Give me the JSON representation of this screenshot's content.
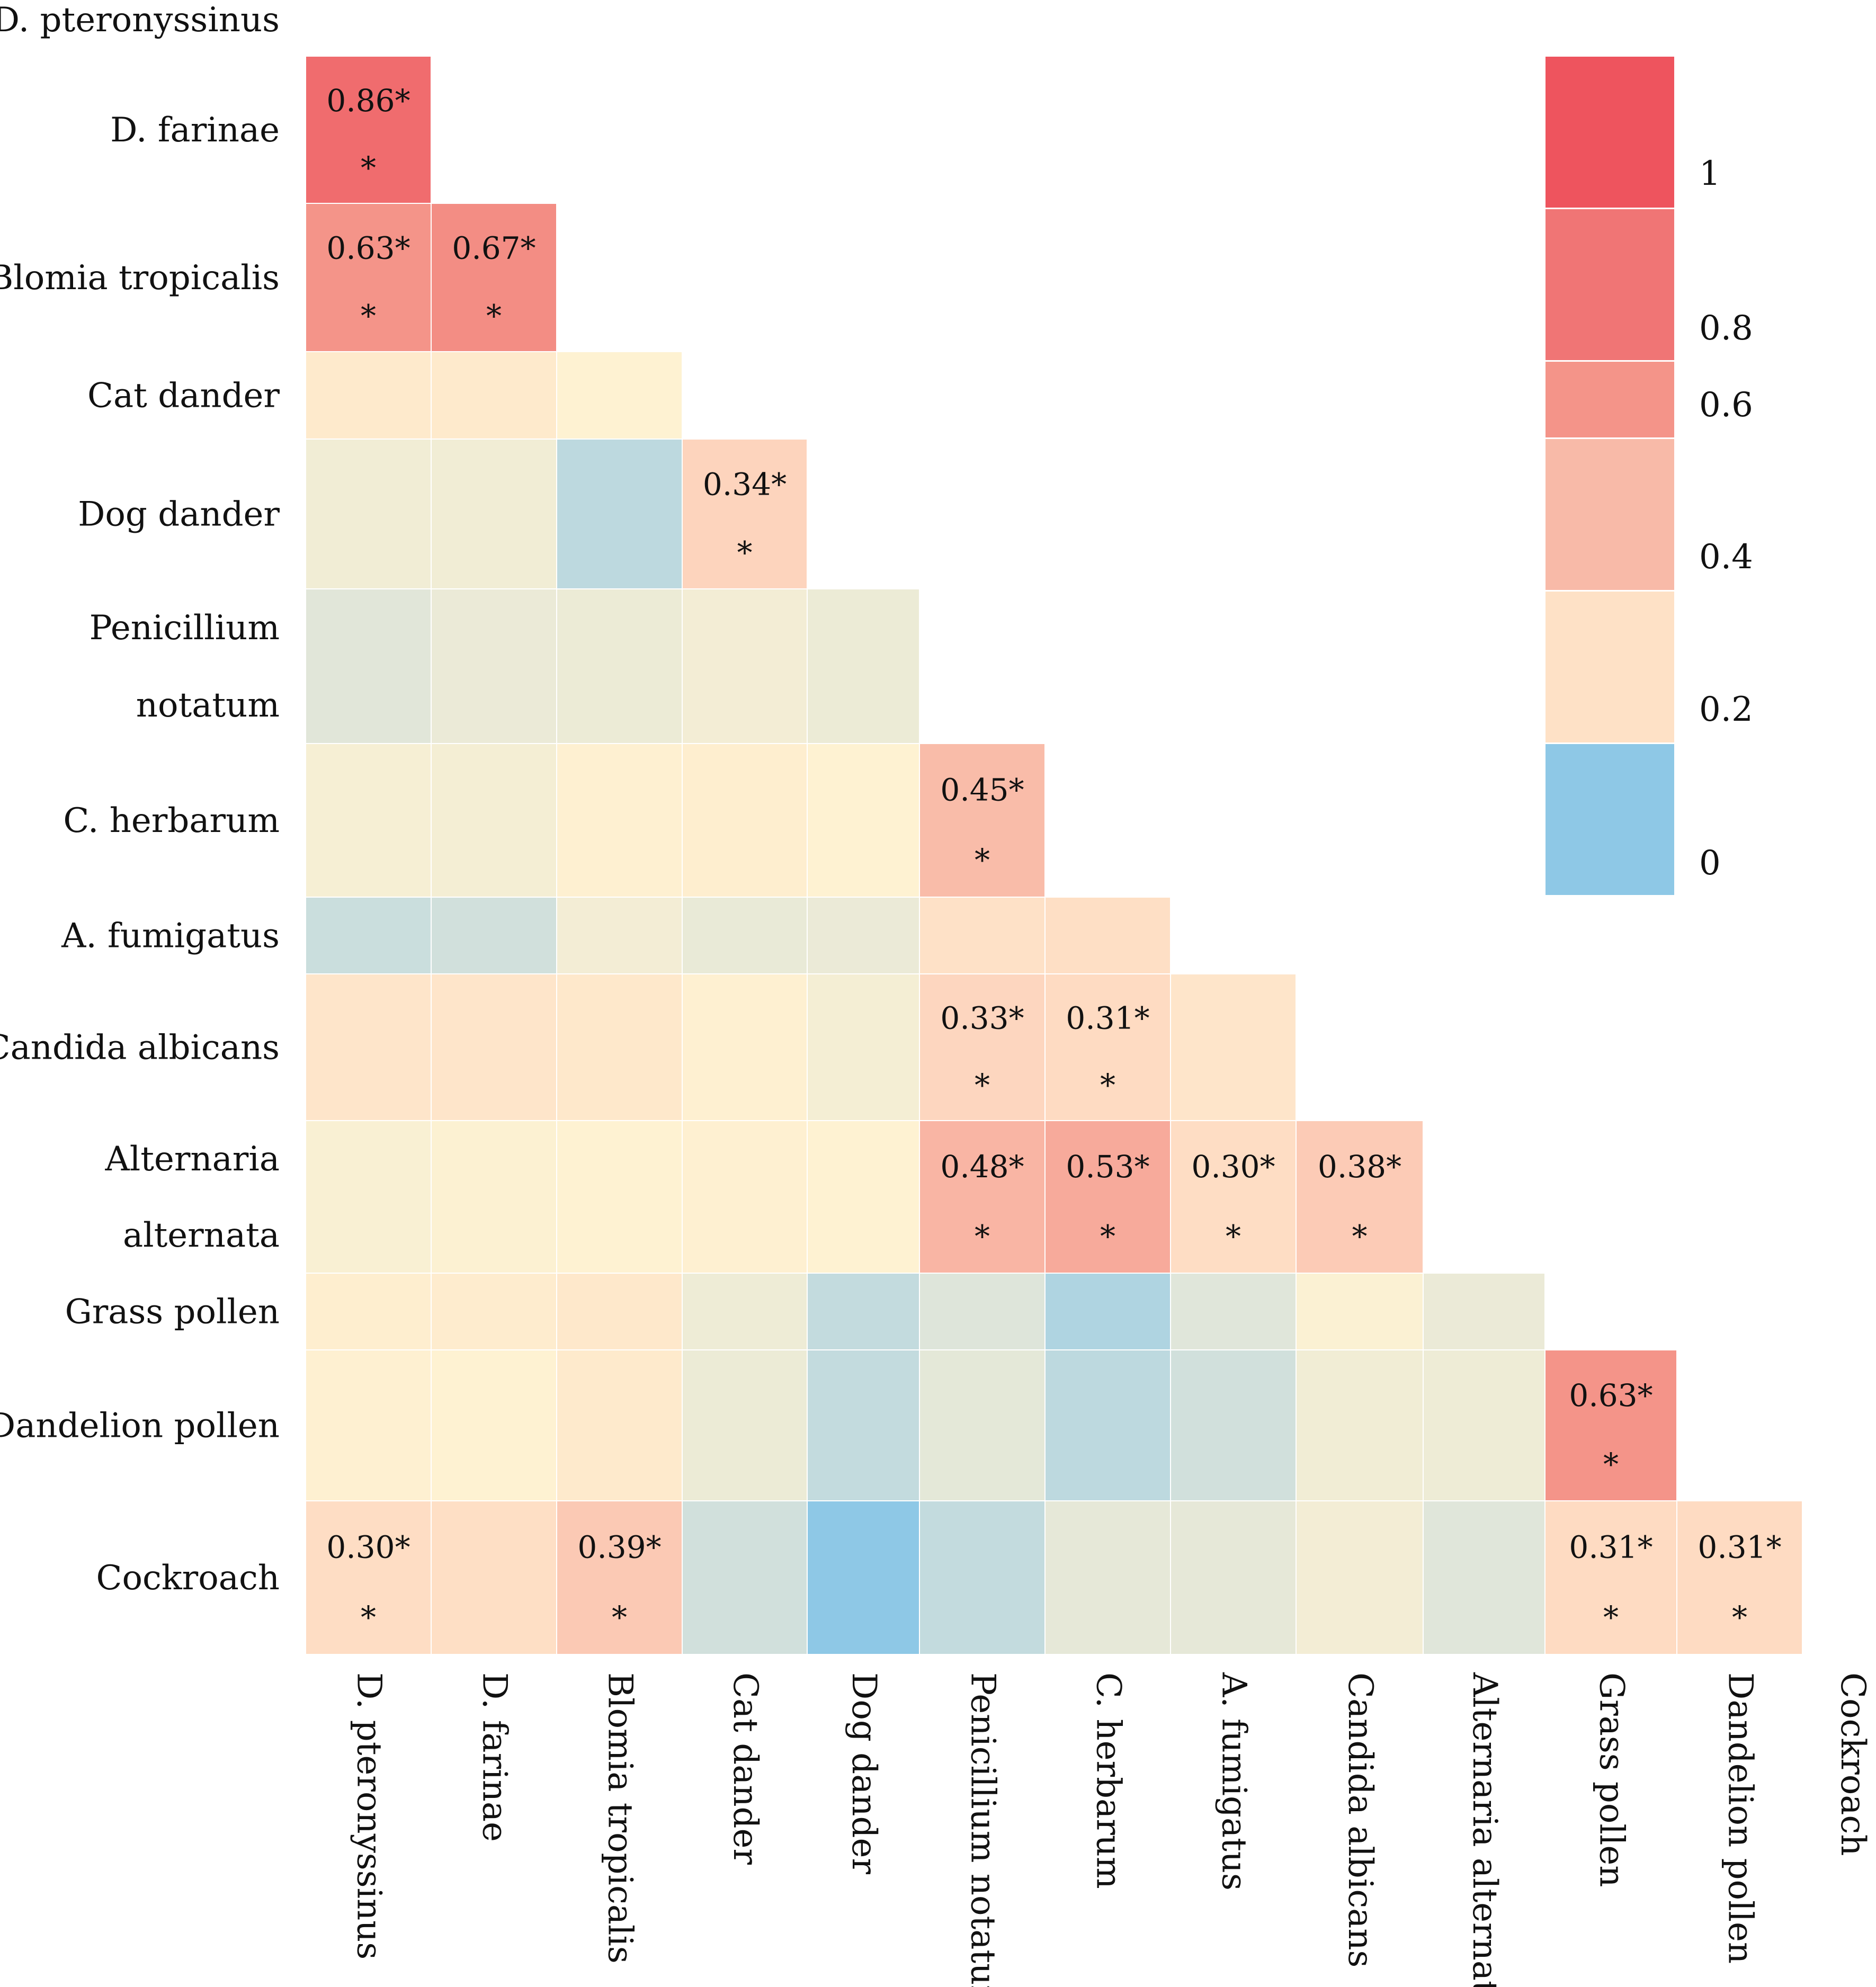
{
  "chart_data": {
    "type": "heatmap",
    "title": "",
    "variables": [
      "D. pteronyssinus",
      "D. farinae",
      "Blomia tropicalis",
      "Cat dander",
      "Dog dander",
      "Penicillium notatum",
      "C. herbarum",
      "A. fumigatus",
      "Candida albicans",
      "Alternaria alternata",
      "Grass pollen",
      "Dandelion pollen",
      "Cockroach"
    ],
    "row_labels": [
      [
        "D. pteronyssinus"
      ],
      [
        "D. farinae"
      ],
      [
        "Blomia tropicalis"
      ],
      [
        "Cat dander"
      ],
      [
        "Dog dander"
      ],
      [
        "Penicillium",
        "notatum"
      ],
      [
        "C. herbarum"
      ],
      [
        "A. fumigatus"
      ],
      [
        "Candida albicans"
      ],
      [
        "Alternaria",
        "alternata"
      ],
      [
        "Grass pollen"
      ],
      [
        "Dandelion pollen"
      ],
      [
        "Cockroach"
      ]
    ],
    "matrix_lower": [
      [],
      [
        0.86
      ],
      [
        0.63,
        0.67
      ],
      [
        0.24,
        0.24,
        0.2
      ],
      [
        0.12,
        0.12,
        -0.05,
        0.34
      ],
      [
        0.02,
        0.08,
        0.09,
        0.13,
        0.09
      ],
      [
        0.15,
        0.14,
        0.21,
        0.22,
        0.2,
        0.45
      ],
      [
        -0.03,
        -0.02,
        0.13,
        0.07,
        0.08,
        0.28,
        0.29
      ],
      [
        0.26,
        0.26,
        0.25,
        0.21,
        0.14,
        0.33,
        0.31,
        0.26
      ],
      [
        0.17,
        0.19,
        0.2,
        0.21,
        0.2,
        0.48,
        0.53,
        0.3,
        0.38
      ],
      [
        0.22,
        0.23,
        0.25,
        0.1,
        -0.04,
        0.0,
        -0.07,
        0.01,
        0.18,
        0.08
      ],
      [
        0.21,
        0.2,
        0.24,
        0.09,
        -0.04,
        0.04,
        -0.05,
        -0.02,
        0.12,
        0.1,
        0.63
      ],
      [
        0.3,
        0.29,
        0.39,
        -0.02,
        -0.12,
        -0.04,
        0.05,
        0.05,
        0.13,
        0.01,
        0.31,
        0.31
      ]
    ],
    "labels_lower": [
      [],
      [
        [
          "0.86*",
          "*"
        ]
      ],
      [
        [
          "0.63*",
          "*"
        ],
        [
          "0.67*",
          "*"
        ]
      ],
      [
        null,
        null,
        null
      ],
      [
        null,
        null,
        null,
        [
          "0.34*",
          "*"
        ]
      ],
      [
        null,
        null,
        null,
        null,
        null
      ],
      [
        null,
        null,
        null,
        null,
        null,
        [
          "0.45*",
          "*"
        ]
      ],
      [
        null,
        null,
        null,
        null,
        null,
        null,
        null
      ],
      [
        null,
        null,
        null,
        null,
        null,
        [
          "0.33*",
          "*"
        ],
        [
          "0.31*",
          "*"
        ],
        null
      ],
      [
        null,
        null,
        null,
        null,
        null,
        [
          "0.48*",
          "*"
        ],
        [
          "0.53*",
          "*"
        ],
        [
          "0.30*",
          "*"
        ],
        [
          "0.38*",
          "*"
        ]
      ],
      [
        null,
        null,
        null,
        null,
        null,
        null,
        null,
        null,
        null,
        null
      ],
      [
        null,
        null,
        null,
        null,
        null,
        null,
        null,
        null,
        null,
        null,
        [
          "0.63*",
          "*"
        ]
      ],
      [
        [
          "0.30*",
          "*"
        ],
        null,
        [
          "0.39*",
          "*"
        ],
        null,
        null,
        null,
        null,
        null,
        null,
        null,
        [
          "0.31*",
          "*"
        ],
        [
          "0.31*",
          "*"
        ]
      ]
    ],
    "colorbar": {
      "ticks": [
        "1",
        "0.8",
        "0.6",
        "0.4",
        "0.2",
        "0"
      ],
      "tick_values": [
        1,
        0.8,
        0.6,
        0.4,
        0.2,
        0
      ],
      "bands": [
        {
          "color": "#EE545E"
        },
        {
          "color": "#F07575"
        },
        {
          "color": "#F49489"
        },
        {
          "color": "#F8BAA8"
        },
        {
          "color": "#FEE1C6"
        },
        {
          "color": "#8EC8E6"
        }
      ]
    },
    "colors": {
      "neg": "#8EC8E6",
      "zero": "#DEE5DA",
      "low": "#FEF2D2",
      "mid": "#FEDDC4",
      "high": "#F49489",
      "max": "#EE545E"
    }
  }
}
